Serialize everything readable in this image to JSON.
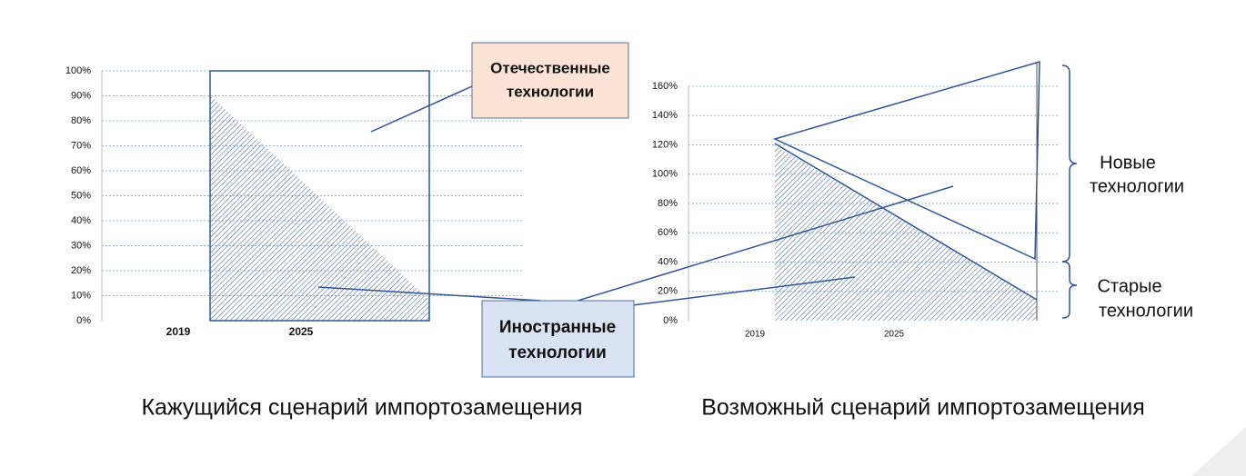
{
  "left_chart": {
    "yticks": [
      "0%",
      "10%",
      "20%",
      "30%",
      "40%",
      "50%",
      "60%",
      "70%",
      "80%",
      "90%",
      "100%"
    ],
    "xlabels": [
      "2019",
      "2025"
    ],
    "caption": "Кажущийся сценарий импортозамещения"
  },
  "right_chart": {
    "yticks": [
      "0%",
      "20%",
      "40%",
      "60%",
      "80%",
      "100%",
      "120%",
      "140%",
      "160%"
    ],
    "xlabels": [
      "2019",
      "2025"
    ],
    "caption": "Возможный сценарий импортозамещения"
  },
  "labels": {
    "domestic": [
      "Отечественные",
      "технологии"
    ],
    "foreign": [
      "Иностранные",
      "технологии"
    ],
    "new": [
      "Новые",
      "технологии"
    ],
    "old": [
      "Старые",
      "технологии"
    ]
  }
}
